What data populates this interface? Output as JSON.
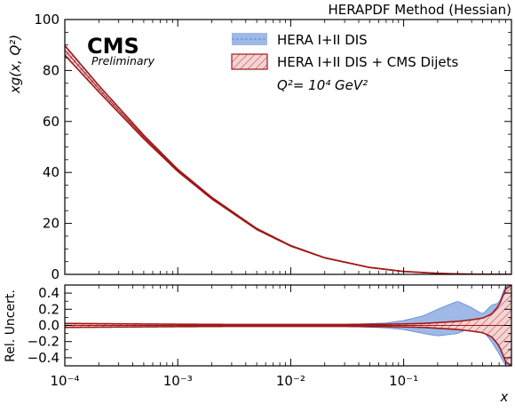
{
  "corner_title": "HERAPDF Method (Hessian)",
  "logo": {
    "main": "CMS",
    "sub": "Preliminary"
  },
  "legend": {
    "items": [
      {
        "label": "HERA I+II DIS",
        "color": "#6f9be0",
        "style": "solid-band"
      },
      {
        "label": "HERA I+II DIS + CMS Dijets",
        "color": "#b22222",
        "style": "hatched-band"
      }
    ],
    "scale_label": "Q²= 10⁴ GeV²"
  },
  "axes": {
    "top_ylabel": "xg(x, Q²)",
    "bottom_ylabel": "Rel. Uncert.",
    "xlabel": "x",
    "x_ticks": [
      "10⁻⁴",
      "10⁻³",
      "10⁻²",
      "10⁻¹"
    ],
    "top_y_ticks": [
      "0",
      "20",
      "40",
      "60",
      "80",
      "100"
    ],
    "bottom_y_ticks": [
      "0.4",
      "0.2",
      "0.0",
      "−0.2",
      "−0.4"
    ]
  },
  "chart_data": [
    {
      "type": "area",
      "title": "HERAPDF Method (Hessian)",
      "xlabel": "x",
      "ylabel": "xg(x, Q²)",
      "xscale": "log",
      "xlim": [
        0.0001,
        0.9
      ],
      "ylim": [
        0,
        100
      ],
      "grid": false,
      "legend_position": "top-right",
      "x": [
        0.0001,
        0.0002,
        0.0005,
        0.001,
        0.002,
        0.005,
        0.01,
        0.02,
        0.05,
        0.1,
        0.2,
        0.3,
        0.5,
        0.7,
        0.9
      ],
      "series": [
        {
          "name": "HERA I+II DIS",
          "central": [
            88.3,
            73.0,
            54.0,
            40.9,
            30.0,
            17.8,
            11.2,
            6.5,
            2.7,
            1.15,
            0.4,
            0.17,
            0.03,
            0.005,
            0.0
          ],
          "lower": [
            87.2,
            72.2,
            53.5,
            40.5,
            29.7,
            17.6,
            11.1,
            6.45,
            2.68,
            1.14,
            0.39,
            0.15,
            0.02,
            0.002,
            0.0
          ],
          "upper": [
            89.4,
            73.9,
            54.6,
            41.4,
            30.4,
            18.0,
            11.3,
            6.55,
            2.73,
            1.17,
            0.42,
            0.19,
            0.04,
            0.008,
            0.0
          ]
        },
        {
          "name": "HERA I+II DIS + CMS Dijets",
          "central": [
            88.0,
            72.8,
            53.9,
            40.8,
            29.9,
            17.8,
            11.2,
            6.5,
            2.7,
            1.15,
            0.4,
            0.17,
            0.03,
            0.005,
            0.0
          ],
          "lower": [
            86.0,
            71.6,
            53.2,
            40.4,
            29.6,
            17.6,
            11.1,
            6.45,
            2.68,
            1.14,
            0.39,
            0.16,
            0.025,
            0.003,
            0.0
          ],
          "upper": [
            89.8,
            74.1,
            54.6,
            41.2,
            30.2,
            18.0,
            11.3,
            6.55,
            2.72,
            1.16,
            0.41,
            0.18,
            0.035,
            0.007,
            0.0
          ]
        }
      ]
    },
    {
      "type": "area",
      "xlabel": "x",
      "ylabel": "Rel. Uncert.",
      "xscale": "log",
      "xlim": [
        0.0001,
        0.9
      ],
      "ylim": [
        -0.5,
        0.5
      ],
      "grid": false,
      "x": [
        0.0001,
        0.0003,
        0.001,
        0.003,
        0.01,
        0.03,
        0.07,
        0.1,
        0.15,
        0.2,
        0.3,
        0.4,
        0.5,
        0.6,
        0.7,
        0.8,
        0.9
      ],
      "series": [
        {
          "name": "HERA I+II DIS",
          "lower": [
            -0.012,
            -0.011,
            -0.01,
            -0.009,
            -0.01,
            -0.012,
            -0.03,
            -0.05,
            -0.1,
            -0.13,
            -0.1,
            -0.02,
            -0.06,
            -0.2,
            -0.35,
            -0.5,
            -0.5
          ],
          "upper": [
            0.012,
            0.011,
            0.01,
            0.009,
            0.01,
            0.012,
            0.03,
            0.06,
            0.12,
            0.2,
            0.3,
            0.22,
            0.14,
            0.25,
            0.28,
            0.5,
            0.5
          ]
        },
        {
          "name": "HERA I+II DIS + CMS Dijets",
          "lower": [
            -0.025,
            -0.02,
            -0.015,
            -0.012,
            -0.012,
            -0.012,
            -0.015,
            -0.018,
            -0.025,
            -0.035,
            -0.05,
            -0.07,
            -0.09,
            -0.14,
            -0.25,
            -0.45,
            -0.5
          ],
          "upper": [
            0.025,
            0.02,
            0.015,
            0.012,
            0.012,
            0.012,
            0.015,
            0.018,
            0.025,
            0.035,
            0.05,
            0.07,
            0.09,
            0.14,
            0.25,
            0.45,
            0.5
          ]
        }
      ]
    }
  ],
  "colors": {
    "band_blue_fill": "#9fb9e6",
    "band_blue_line": "#5a85d6",
    "band_red_line": "#a01818",
    "band_red_fill": "#f1cfcf"
  }
}
